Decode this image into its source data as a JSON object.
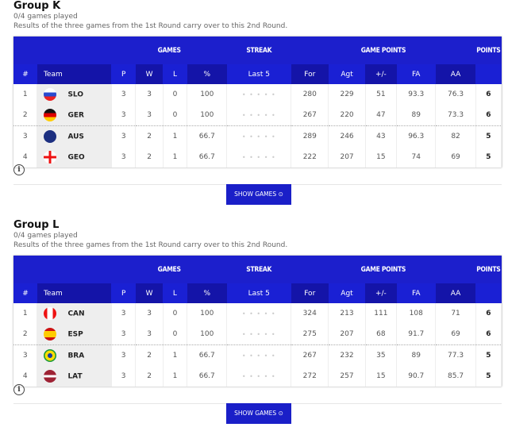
{
  "columns": {
    "games": "GAMES",
    "streak": "STREAK",
    "game_points": "GAME POINTS",
    "points": "POINTS",
    "num": "#",
    "team": "Team",
    "p": "P",
    "w": "W",
    "l": "L",
    "pct": "%",
    "last5": "Last 5",
    "for": "For",
    "agt": "Agt",
    "diff": "+/-",
    "fa": "FA",
    "aa": "AA"
  },
  "show_games_label": "SHOW GAMES",
  "groups": [
    {
      "title": "Group K",
      "played": "0/4 games played",
      "note": "Results of the three games from the 1st Round carry over to this 2nd Round.",
      "rows": [
        {
          "rank": "1",
          "team": "SLO",
          "p": "3",
          "w": "3",
          "l": "0",
          "pct": "100",
          "last5": "• • • • •",
          "for": "280",
          "agt": "229",
          "diff": "51",
          "fa": "93.3",
          "aa": "76.3",
          "pts": "6",
          "flag": "linear-gradient(#fff 33%,#2a4bd0 33% 66%,#e22 66%)"
        },
        {
          "rank": "2",
          "team": "GER",
          "p": "3",
          "w": "3",
          "l": "0",
          "pct": "100",
          "last5": "• • • • •",
          "for": "267",
          "agt": "220",
          "diff": "47",
          "fa": "89",
          "aa": "73.3",
          "pts": "6",
          "flag": "linear-gradient(#111 33%,#d00 33% 66%,#fc0 66%)"
        },
        {
          "rank": "3",
          "team": "AUS",
          "p": "3",
          "w": "2",
          "l": "1",
          "pct": "66.7",
          "last5": "• • • • •",
          "for": "289",
          "agt": "246",
          "diff": "43",
          "fa": "96.3",
          "aa": "82",
          "pts": "5",
          "flag": "#1c2f80"
        },
        {
          "rank": "4",
          "team": "GEO",
          "p": "3",
          "w": "2",
          "l": "1",
          "pct": "66.7",
          "last5": "• • • • •",
          "for": "222",
          "agt": "207",
          "diff": "15",
          "fa": "74",
          "aa": "69",
          "pts": "5",
          "flag": "linear-gradient(90deg,transparent 42%,#e11 42% 58%,transparent 58%),linear-gradient(#fff 42%,#e11 42% 58%,#fff 58%)"
        }
      ]
    },
    {
      "title": "Group L",
      "played": "0/4 games played",
      "note": "Results of the three games from the 1st Round carry over to this 2nd Round.",
      "rows": [
        {
          "rank": "1",
          "team": "CAN",
          "p": "3",
          "w": "3",
          "l": "0",
          "pct": "100",
          "last5": "• • • • •",
          "for": "324",
          "agt": "213",
          "diff": "111",
          "fa": "108",
          "aa": "71",
          "pts": "6",
          "flag": "linear-gradient(90deg,#e11 28%,#fff 28% 72%,#e11 72%)"
        },
        {
          "rank": "2",
          "team": "ESP",
          "p": "3",
          "w": "3",
          "l": "0",
          "pct": "100",
          "last5": "• • • • •",
          "for": "275",
          "agt": "207",
          "diff": "68",
          "fa": "91.7",
          "aa": "69",
          "pts": "6",
          "flag": "linear-gradient(#c11 25%,#fc0 25% 75%,#c11 75%)"
        },
        {
          "rank": "3",
          "team": "BRA",
          "p": "3",
          "w": "2",
          "l": "1",
          "pct": "66.7",
          "last5": "• • • • •",
          "for": "267",
          "agt": "232",
          "diff": "35",
          "fa": "89",
          "aa": "77.3",
          "pts": "5",
          "flag": "radial-gradient(#1c3fa0 25%,#fd0 28% 55%,#1a9a3a 58%)"
        },
        {
          "rank": "4",
          "team": "LAT",
          "p": "3",
          "w": "2",
          "l": "1",
          "pct": "66.7",
          "last5": "• • • • •",
          "for": "272",
          "agt": "257",
          "diff": "15",
          "fa": "90.7",
          "aa": "85.7",
          "pts": "5",
          "flag": "linear-gradient(#9e2234 40%,#fff 40% 60%,#9e2234 60%)"
        }
      ]
    }
  ]
}
